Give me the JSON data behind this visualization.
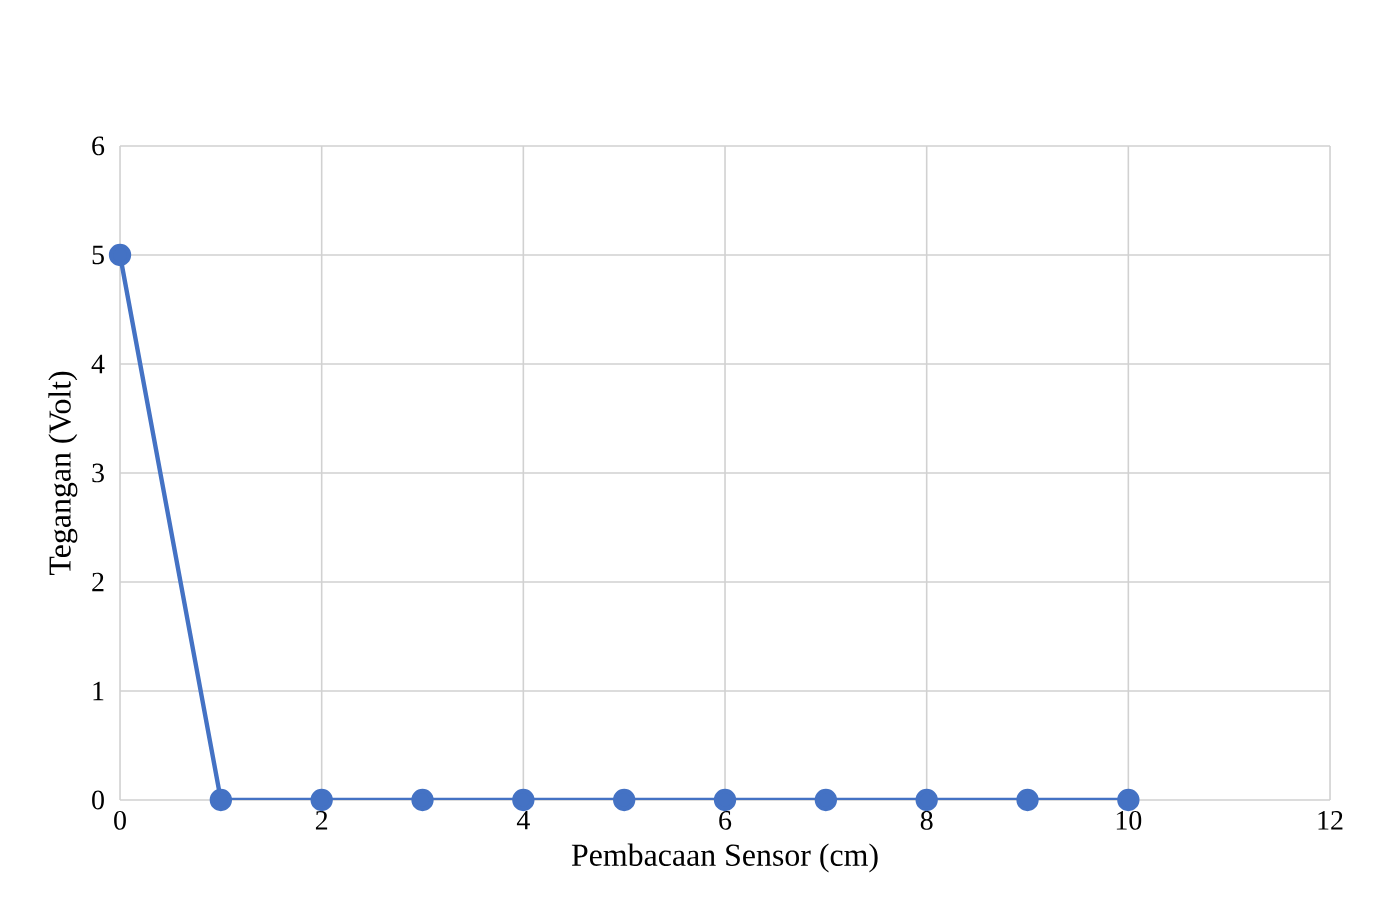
{
  "chart_data": {
    "type": "line",
    "xlabel": "Pembacaan Sensor (cm)",
    "ylabel": "Tegangan (Volt)",
    "x": [
      0,
      1,
      2,
      3,
      4,
      5,
      6,
      7,
      8,
      9,
      10
    ],
    "series": [
      {
        "color": "#4472c4",
        "values": [
          5,
          0,
          0,
          0,
          0,
          0,
          0,
          0,
          0,
          0,
          0
        ]
      }
    ],
    "xlim": [
      0,
      12
    ],
    "xticks": [
      0,
      2,
      4,
      6,
      8,
      10,
      12
    ],
    "ylim": [
      0,
      6
    ],
    "yticks": [
      0,
      1,
      2,
      3,
      4,
      5,
      6
    ],
    "grid": true,
    "marker": "circle",
    "line_style": "solid"
  }
}
